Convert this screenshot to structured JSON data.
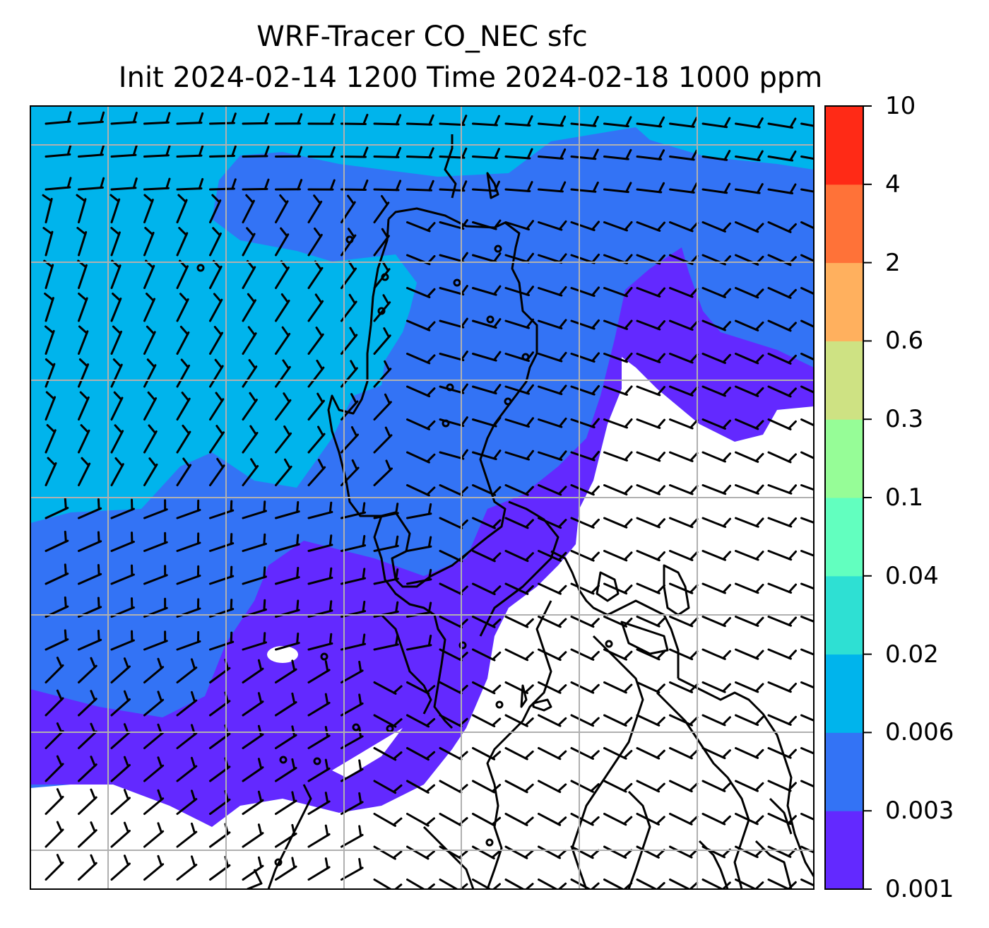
{
  "title": {
    "line1": "WRF-Tracer CO_NEC sfc",
    "line2": "Init 2024-02-14 1200 Time 2024-02-18 1000 ppm"
  },
  "colorbar": {
    "levels": [
      "0.001",
      "0.003",
      "0.006",
      "0.02",
      "0.04",
      "0.1",
      "0.3",
      "0.6",
      "2",
      "4",
      "10"
    ],
    "colors": [
      "#6329ff",
      "#3373f5",
      "#00b4ec",
      "#2ee0d3",
      "#62ffbf",
      "#96fd97",
      "#cee283",
      "#ffb05e",
      "#ff7238",
      "#ff2a16"
    ]
  },
  "map": {
    "shading_colors": {
      "lowest": "#6329ff",
      "low": "#3373f5",
      "mid": "#00b4ec",
      "none": "#ffffff"
    },
    "gridline_color": "#b0b0b0",
    "coastline_color": "#000000",
    "wind_barb_color": "#000000"
  }
}
